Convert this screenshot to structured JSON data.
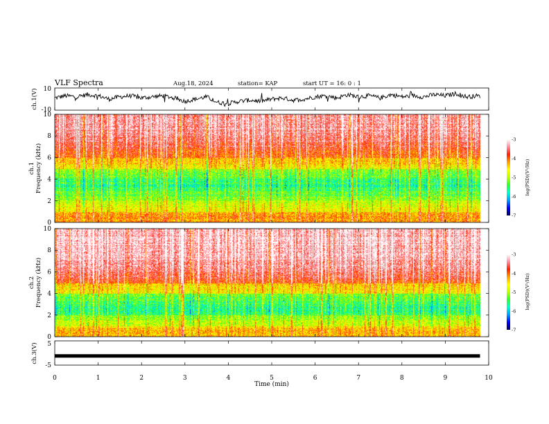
{
  "header": {
    "title": "VLF Spectra",
    "date": "Aug.18, 2024",
    "station": "station= KAP",
    "start_ut": "start  UT =   16: 0  : 1"
  },
  "colors": {
    "spectrogram_scale": [
      "#000060",
      "#0000ff",
      "#00a0ff",
      "#00ffd0",
      "#30ff30",
      "#c0ff00",
      "#ffff00",
      "#ffa000",
      "#ff2000",
      "#ff90a0",
      "#ffffff"
    ],
    "trace": "#000000"
  },
  "chart_data": [
    {
      "type": "line",
      "name": "ch1",
      "ylabel": "ch.1(V)",
      "ylim": [
        -10,
        10
      ],
      "ytick_labels": [
        "10",
        "-10"
      ],
      "xlim": [
        0,
        10
      ],
      "x": [
        0,
        0.25,
        0.5,
        0.75,
        1,
        1.25,
        1.5,
        1.75,
        2,
        2.25,
        2.5,
        2.75,
        3,
        3.25,
        3.5,
        3.75,
        4,
        4.25,
        4.5,
        4.75,
        5,
        5.25,
        5.5,
        5.75,
        6,
        6.25,
        6.5,
        6.75,
        7,
        7.25,
        7.5,
        7.75,
        8,
        8.25,
        8.5,
        8.75,
        9,
        9.25,
        9.5,
        9.75,
        9.8
      ],
      "y": [
        1,
        3,
        2,
        4,
        3,
        0,
        2,
        3,
        1,
        2,
        3,
        1,
        -2,
        0,
        2,
        -3,
        -4,
        -2,
        -1,
        -2,
        0,
        1,
        -1,
        0,
        2,
        3,
        1,
        4,
        2,
        3,
        1,
        4,
        2,
        3,
        2,
        4,
        3,
        5,
        2,
        3,
        2
      ]
    },
    {
      "type": "heatmap",
      "name": "ch1-spectrogram",
      "ylabel": "ch.1\nFrequency (kHz)",
      "ytick_labels": [
        "0",
        "2",
        "4",
        "6",
        "8",
        "10"
      ],
      "ylim": [
        0,
        10
      ],
      "xlim": [
        0,
        10
      ],
      "z_label": "log(PSD)(V²/Hz)",
      "zlim": [
        -7,
        -3
      ],
      "z_tick_labels": [
        "-3",
        "-4",
        "-5",
        "-6",
        "-7"
      ],
      "freq_band_levels": [
        {
          "from": 0,
          "to": 1,
          "level": -4.2
        },
        {
          "from": 1,
          "to": 2,
          "level": -4.8
        },
        {
          "from": 2,
          "to": 3,
          "level": -5.3
        },
        {
          "from": 3,
          "to": 4,
          "level": -5.6
        },
        {
          "from": 4,
          "to": 5,
          "level": -5.3
        },
        {
          "from": 5,
          "to": 6,
          "level": -4.5
        },
        {
          "from": 6,
          "to": 7,
          "level": -3.9
        },
        {
          "from": 7,
          "to": 8,
          "level": -3.6
        },
        {
          "from": 8,
          "to": 10,
          "level": -3.4
        }
      ]
    },
    {
      "type": "heatmap",
      "name": "ch2-spectrogram",
      "ylabel": "ch.2\nFrequency (kHz)",
      "ytick_labels": [
        "0",
        "2",
        "4",
        "6",
        "8",
        "10"
      ],
      "ylim": [
        0,
        10
      ],
      "xlim": [
        0,
        10
      ],
      "z_label": "log(PSD)(V²/Hz)",
      "zlim": [
        -7,
        -3
      ],
      "z_tick_labels": [
        "-3",
        "-4",
        "-5",
        "-6",
        "-7"
      ],
      "freq_band_levels": [
        {
          "from": 0,
          "to": 1,
          "level": -4.3
        },
        {
          "from": 1,
          "to": 2,
          "level": -5.0
        },
        {
          "from": 2,
          "to": 3,
          "level": -5.6
        },
        {
          "from": 3,
          "to": 4,
          "level": -5.4
        },
        {
          "from": 4,
          "to": 5,
          "level": -4.5
        },
        {
          "from": 5,
          "to": 6,
          "level": -3.7
        },
        {
          "from": 6,
          "to": 7,
          "level": -3.4
        },
        {
          "from": 7,
          "to": 10,
          "level": -3.2
        }
      ]
    },
    {
      "type": "line",
      "name": "ch3",
      "ylabel": "ch.3(V)",
      "ylim": [
        -5,
        5
      ],
      "ytick_labels": [
        "5",
        "-5"
      ],
      "xlim": [
        0,
        10
      ],
      "x": [
        0,
        9.8
      ],
      "y": [
        -1.2,
        -1.2
      ]
    }
  ],
  "xaxis": {
    "label": "Time (min)",
    "tick_labels": [
      "0",
      "1",
      "2",
      "3",
      "4",
      "5",
      "6",
      "7",
      "8",
      "9",
      "10"
    ]
  }
}
